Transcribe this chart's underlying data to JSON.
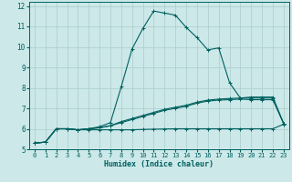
{
  "xlabel": "Humidex (Indice chaleur)",
  "bg_color": "#cce8e8",
  "grid_color": "#aacccc",
  "line_color": "#006060",
  "xlim": [
    -0.5,
    23.5
  ],
  "ylim": [
    5,
    12.2
  ],
  "xticks": [
    0,
    1,
    2,
    3,
    4,
    5,
    6,
    7,
    8,
    9,
    10,
    11,
    12,
    13,
    14,
    15,
    16,
    17,
    18,
    19,
    20,
    21,
    22,
    23
  ],
  "yticks": [
    5,
    6,
    7,
    8,
    9,
    10,
    11,
    12
  ],
  "series": [
    [
      5.3,
      5.35,
      6.0,
      6.0,
      5.95,
      6.0,
      6.1,
      6.3,
      8.05,
      9.9,
      10.9,
      11.75,
      11.65,
      11.55,
      10.95,
      10.45,
      9.85,
      9.95,
      8.25,
      7.5,
      7.55,
      7.55,
      7.55,
      6.25
    ],
    [
      5.3,
      5.35,
      6.0,
      6.0,
      5.95,
      6.0,
      6.05,
      6.15,
      6.35,
      6.5,
      6.65,
      6.8,
      6.95,
      7.05,
      7.15,
      7.3,
      7.4,
      7.45,
      7.48,
      7.5,
      7.5,
      7.5,
      7.5,
      6.25
    ],
    [
      5.3,
      5.35,
      6.0,
      6.0,
      5.95,
      5.95,
      5.95,
      5.95,
      5.95,
      5.95,
      5.97,
      5.98,
      5.99,
      6.0,
      6.0,
      6.0,
      6.0,
      6.0,
      6.0,
      6.0,
      6.0,
      6.0,
      6.0,
      6.22
    ],
    [
      5.3,
      5.35,
      6.0,
      6.0,
      5.95,
      6.0,
      6.05,
      6.15,
      6.3,
      6.45,
      6.6,
      6.75,
      6.9,
      7.0,
      7.1,
      7.25,
      7.35,
      7.4,
      7.42,
      7.45,
      7.42,
      7.42,
      7.42,
      6.25
    ]
  ]
}
